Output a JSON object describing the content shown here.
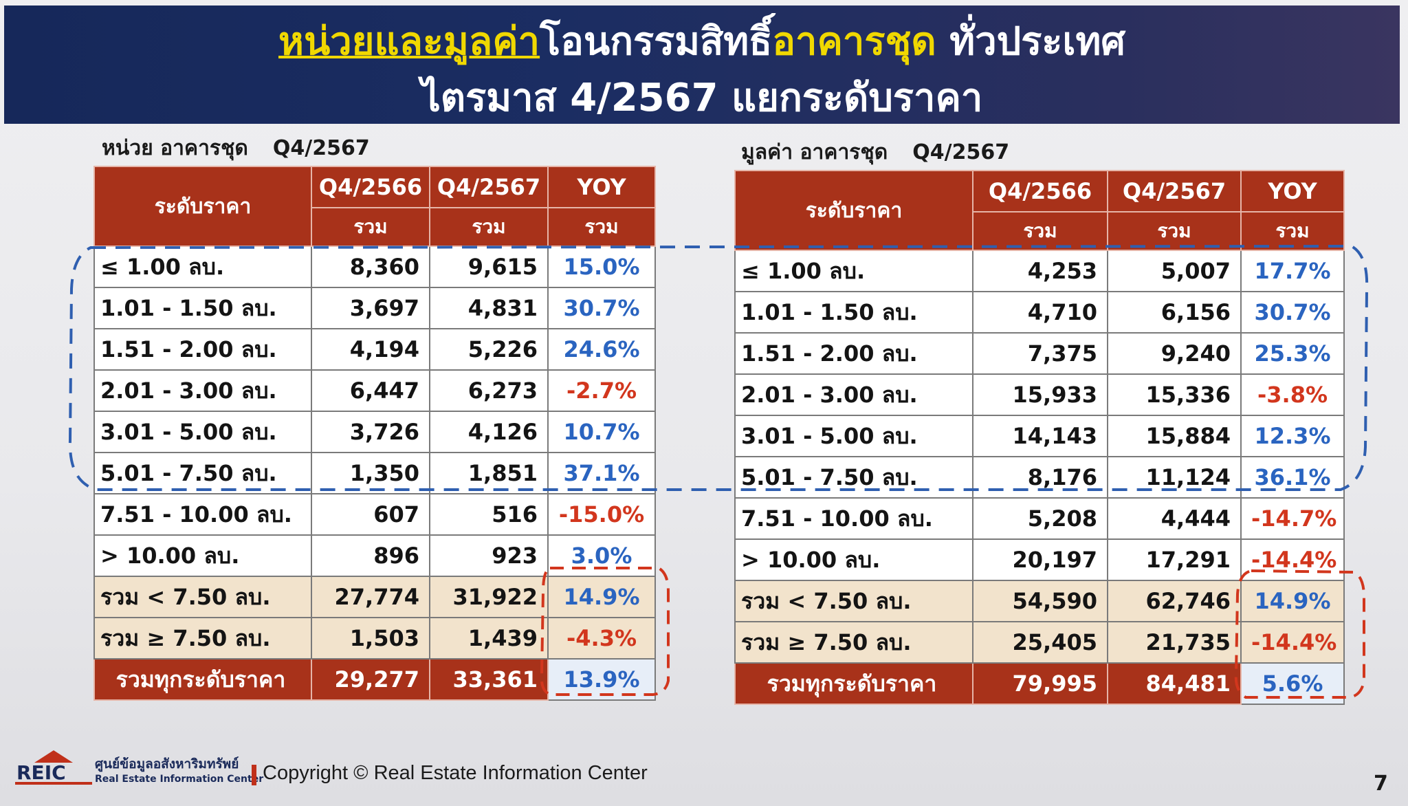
{
  "title": {
    "line1_part1": "หน่วยและมูลค่า",
    "line1_part2": "โอนกรรมสิทธิ์",
    "line1_part3": "อาคารชุด",
    "line1_part4": " ทั่วประเทศ",
    "line2": "ไตรมาส 4/2567 แยกระดับราคา"
  },
  "left_table": {
    "caption": "หน่วย อาคารชุด",
    "caption_period": "Q4/2567",
    "header_label": "ระดับราคา",
    "columns": [
      "Q4/2566",
      "Q4/2567",
      "YOY"
    ],
    "sub_header": [
      "รวม",
      "รวม",
      "รวม"
    ],
    "rows": [
      {
        "label": "≤ 1.00 ลบ.",
        "v1": "8,360",
        "v2": "9,615",
        "yoy": "15.0%"
      },
      {
        "label": "1.01 - 1.50 ลบ.",
        "v1": "3,697",
        "v2": "4,831",
        "yoy": "30.7%"
      },
      {
        "label": "1.51 - 2.00 ลบ.",
        "v1": "4,194",
        "v2": "5,226",
        "yoy": "24.6%"
      },
      {
        "label": "2.01 - 3.00 ลบ.",
        "v1": "6,447",
        "v2": "6,273",
        "yoy": "-2.7%"
      },
      {
        "label": "3.01 - 5.00 ลบ.",
        "v1": "3,726",
        "v2": "4,126",
        "yoy": "10.7%"
      },
      {
        "label": "5.01 - 7.50 ลบ.",
        "v1": "1,350",
        "v2": "1,851",
        "yoy": "37.1%"
      },
      {
        "label": "7.51 - 10.00 ลบ.",
        "v1": "607",
        "v2": "516",
        "yoy": "-15.0%"
      },
      {
        "label": "> 10.00 ลบ.",
        "v1": "896",
        "v2": "923",
        "yoy": "3.0%"
      },
      {
        "label": "รวม < 7.50 ลบ.",
        "v1": "27,774",
        "v2": "31,922",
        "yoy": "14.9%"
      },
      {
        "label": "รวม ≥ 7.50 ลบ.",
        "v1": "1,503",
        "v2": "1,439",
        "yoy": "-4.3%"
      },
      {
        "label": "รวมทุกระดับราคา",
        "v1": "29,277",
        "v2": "33,361",
        "yoy": "13.9%"
      }
    ]
  },
  "right_table": {
    "caption": "มูลค่า อาคารชุด",
    "caption_period": "Q4/2567",
    "header_label": "ระดับราคา",
    "columns": [
      "Q4/2566",
      "Q4/2567",
      "YOY"
    ],
    "sub_header": [
      "รวม",
      "รวม",
      "รวม"
    ],
    "rows": [
      {
        "label": "≤ 1.00 ลบ.",
        "v1": "4,253",
        "v2": "5,007",
        "yoy": "17.7%"
      },
      {
        "label": "1.01 - 1.50 ลบ.",
        "v1": "4,710",
        "v2": "6,156",
        "yoy": "30.7%"
      },
      {
        "label": "1.51 - 2.00 ลบ.",
        "v1": "7,375",
        "v2": "9,240",
        "yoy": "25.3%"
      },
      {
        "label": "2.01 - 3.00 ลบ.",
        "v1": "15,933",
        "v2": "15,336",
        "yoy": "-3.8%"
      },
      {
        "label": "3.01 - 5.00 ลบ.",
        "v1": "14,143",
        "v2": "15,884",
        "yoy": "12.3%"
      },
      {
        "label": "5.01 - 7.50 ลบ.",
        "v1": "8,176",
        "v2": "11,124",
        "yoy": "36.1%"
      },
      {
        "label": "7.51 - 10.00 ลบ.",
        "v1": "5,208",
        "v2": "4,444",
        "yoy": "-14.7%"
      },
      {
        "label": "> 10.00 ลบ.",
        "v1": "20,197",
        "v2": "17,291",
        "yoy": "-14.4%"
      },
      {
        "label": "รวม < 7.50 ลบ.",
        "v1": "54,590",
        "v2": "62,746",
        "yoy": "14.9%"
      },
      {
        "label": "รวม ≥ 7.50 ลบ.",
        "v1": "25,405",
        "v2": "21,735",
        "yoy": "-14.4%"
      },
      {
        "label": "รวมทุกระดับราคา",
        "v1": "79,995",
        "v2": "84,481",
        "yoy": "5.6%"
      }
    ]
  },
  "footer": {
    "logo_text": "REIC",
    "org_name_th": "ศูนย์ข้อมูลอสังหาริมทรัพย์",
    "org_name_en": "Real Estate Information Center",
    "copyright": "Copyright © Real Estate Information Center",
    "page_number": "7"
  },
  "colors": {
    "banner": "#1b2d62",
    "header_red": "#a8321a",
    "positive_blue": "#2a64c0",
    "negative_red": "#d2361d",
    "summary_row": "#f2e3cc",
    "highlight_yellow": "#f0d800"
  }
}
